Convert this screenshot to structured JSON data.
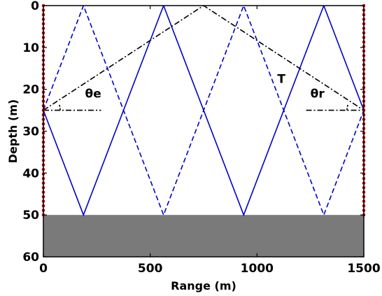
{
  "chart_data": {
    "type": "diagram",
    "xlabel": "Range (m)",
    "ylabel": "Depth (m)",
    "xlim": [
      0,
      1500
    ],
    "ylim": [
      60,
      0
    ],
    "xticks": [
      "0",
      "500",
      "1000",
      "1500"
    ],
    "yticks": [
      "0",
      "10",
      "20",
      "30",
      "40",
      "50",
      "60"
    ],
    "seabed": {
      "from_depth": 50,
      "to_depth": 60,
      "color": "#7a7a7a"
    },
    "arrays": [
      {
        "range": 0,
        "depth_from": 0,
        "depth_to": 50,
        "color": "#cc0000"
      },
      {
        "range": 1500,
        "depth_from": 0,
        "depth_to": 50,
        "color": "#cc0000"
      }
    ],
    "rays": [
      {
        "style": "solid",
        "color": "#0000cc",
        "points": [
          [
            0,
            25
          ],
          [
            187.5,
            50
          ],
          [
            562.5,
            0
          ],
          [
            937.5,
            50
          ],
          [
            1312.5,
            0
          ],
          [
            1500,
            25
          ]
        ]
      },
      {
        "style": "dashed",
        "color": "#0000cc",
        "points": [
          [
            0,
            25
          ],
          [
            187.5,
            0
          ],
          [
            562.5,
            50
          ],
          [
            937.5,
            0
          ],
          [
            1312.5,
            50
          ],
          [
            1500,
            25
          ]
        ]
      },
      {
        "style": "dashdot",
        "color": "#000000",
        "points": [
          [
            0,
            25
          ],
          [
            750,
            0
          ],
          [
            1500,
            25
          ]
        ]
      }
    ],
    "reference_lines": [
      {
        "style": "dashdot",
        "points": [
          [
            0,
            25
          ],
          [
            270,
            25
          ]
        ]
      },
      {
        "style": "dashdot",
        "points": [
          [
            1230,
            25
          ],
          [
            1500,
            25
          ]
        ]
      }
    ],
    "annotations": [
      {
        "text": "T",
        "x": 1095,
        "y": 18.5
      },
      {
        "text": "θe",
        "x": 195,
        "y": 22
      },
      {
        "text": "θr",
        "x": 1250,
        "y": 22
      }
    ]
  }
}
